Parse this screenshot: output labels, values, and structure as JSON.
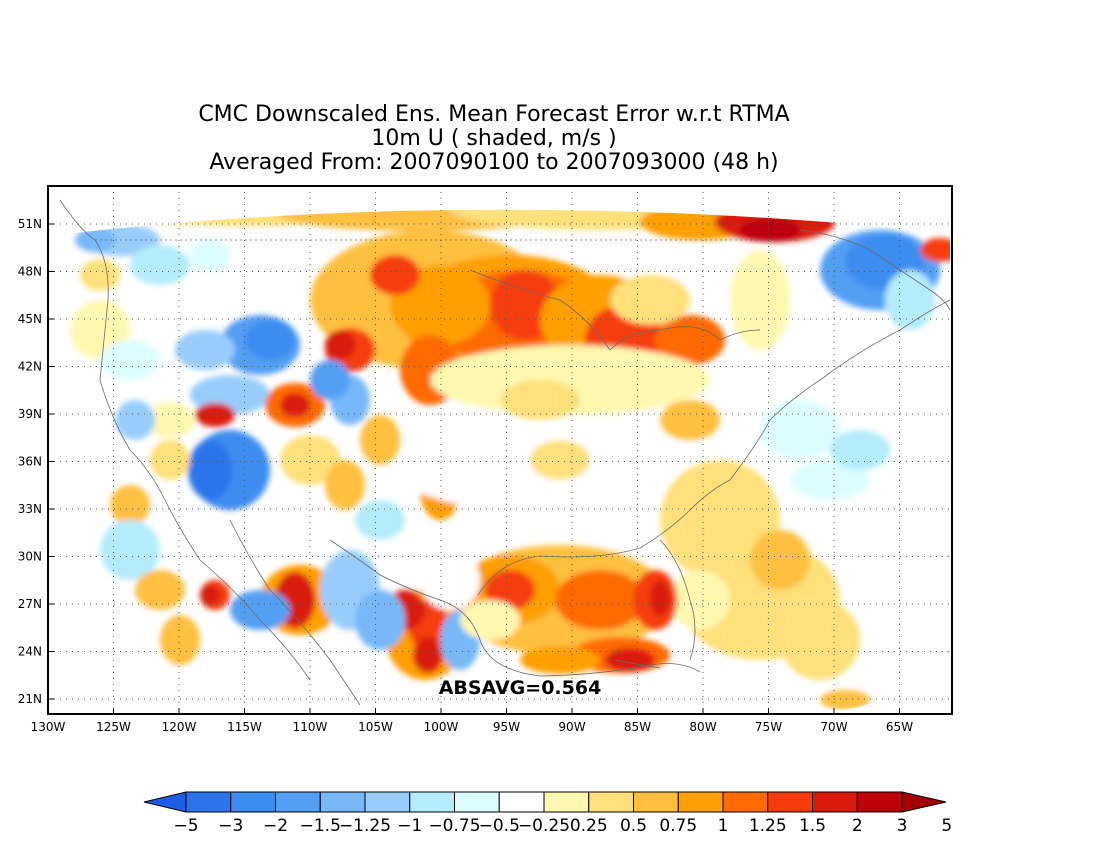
{
  "title": {
    "line1": "CMC Downscaled Ens. Mean Forecast Error w.r.t RTMA",
    "line2": "10m U ( shaded, m/s )",
    "line3": "Averaged From: 2007090100 to 2007093000 (48 h)"
  },
  "absavg": "ABSAVG=0.564",
  "axes": {
    "lon_ticks": [
      "130W",
      "125W",
      "120W",
      "115W",
      "110W",
      "105W",
      "100W",
      "95W",
      "90W",
      "85W",
      "80W",
      "75W",
      "70W",
      "65W"
    ],
    "lat_ticks": [
      "51N",
      "48N",
      "45N",
      "42N",
      "39N",
      "36N",
      "33N",
      "30N",
      "27N",
      "24N",
      "21N"
    ]
  },
  "colorbar": {
    "labels": [
      "−5",
      "−3",
      "−2",
      "−1.5",
      "−1.25",
      "−1",
      "−0.75",
      "−0.5",
      "−0.25",
      "0.25",
      "0.5",
      "0.75",
      "1",
      "1.25",
      "1.5",
      "2",
      "3",
      "5"
    ],
    "colors": [
      "#1e5ee6",
      "#2b74ec",
      "#3d8cf0",
      "#529ff4",
      "#77b8f8",
      "#98cdfb",
      "#b4ecfd",
      "#dcfdff",
      "#ffffff",
      "#fff8b0",
      "#ffe07a",
      "#ffc040",
      "#ff9f00",
      "#ff6a00",
      "#f53c0a",
      "#d91a0a",
      "#bd0008",
      "#a30007"
    ]
  },
  "colors": {
    "frame": "#000000",
    "grid": "#333333",
    "coast": "#666666"
  }
}
